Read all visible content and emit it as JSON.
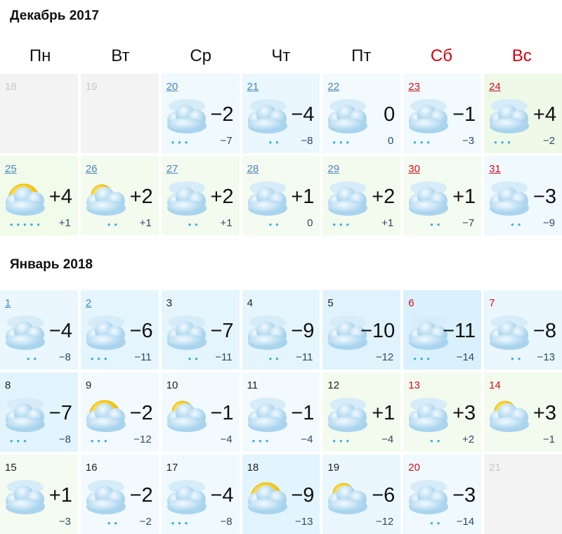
{
  "months": [
    {
      "title": "Декабрь 2017",
      "days": [
        {
          "d": "18",
          "state": "off",
          "bg": "#f3f3f3"
        },
        {
          "d": "19",
          "state": "off",
          "bg": "#f3f3f3"
        },
        {
          "d": "20",
          "state": "link",
          "bg": "#eff9fe",
          "icon": "cloud",
          "precip": 3,
          "hi": "−2",
          "lo": "−7"
        },
        {
          "d": "21",
          "state": "link",
          "bg": "#eaf7fe",
          "icon": "cloud",
          "precip": 2,
          "hi": "−4",
          "lo": "−8"
        },
        {
          "d": "22",
          "state": "link",
          "bg": "#f2fafe",
          "icon": "cloud",
          "precip": 3,
          "hi": "0",
          "lo": "0"
        },
        {
          "d": "23",
          "state": "link-we",
          "bg": "#f2fafe",
          "icon": "cloud",
          "precip": 3,
          "hi": "−1",
          "lo": "−3"
        },
        {
          "d": "24",
          "state": "link-we",
          "bg": "#eff9e8",
          "icon": "cloud",
          "precip": 3,
          "hi": "+4",
          "lo": "−2"
        },
        {
          "d": "25",
          "state": "link",
          "bg": "#f1fbea",
          "icon": "sun-cloud",
          "precip": 5,
          "hi": "+4",
          "lo": "+1"
        },
        {
          "d": "26",
          "state": "link",
          "bg": "#f3fbee",
          "icon": "partial-sun-cloud",
          "precip": 2,
          "hi": "+2",
          "lo": "+1"
        },
        {
          "d": "27",
          "state": "link",
          "bg": "#f3fbee",
          "icon": "cloud",
          "precip": 2,
          "hi": "+2",
          "lo": "+1"
        },
        {
          "d": "28",
          "state": "link",
          "bg": "#f4fbf0",
          "icon": "cloud",
          "precip": 2,
          "hi": "+1",
          "lo": "0"
        },
        {
          "d": "29",
          "state": "link",
          "bg": "#f3fbee",
          "icon": "cloud",
          "precip": 3,
          "hi": "+2",
          "lo": "+1"
        },
        {
          "d": "30",
          "state": "link-we",
          "bg": "#f4fbf0",
          "icon": "cloud",
          "precip": 2,
          "hi": "+1",
          "lo": "−7"
        },
        {
          "d": "31",
          "state": "link-we",
          "bg": "#f0f9fe",
          "icon": "cloud",
          "precip": 2,
          "hi": "−3",
          "lo": "−9"
        }
      ]
    },
    {
      "title": "Январь 2018",
      "days": [
        {
          "d": "1",
          "state": "link",
          "bg": "#eaf7fe",
          "icon": "cloud",
          "precip": 2,
          "hi": "−4",
          "lo": "−8"
        },
        {
          "d": "2",
          "state": "link",
          "bg": "#e5f5fd",
          "icon": "cloud",
          "precip": 3,
          "hi": "−6",
          "lo": "−11"
        },
        {
          "d": "3",
          "state": "plain",
          "bg": "#e5f5fd",
          "icon": "cloud",
          "precip": 2,
          "hi": "−7",
          "lo": "−11"
        },
        {
          "d": "4",
          "state": "plain",
          "bg": "#e5f5fd",
          "icon": "cloud",
          "precip": 2,
          "hi": "−9",
          "lo": "−11"
        },
        {
          "d": "5",
          "state": "plain",
          "bg": "#e0f3fd",
          "icon": "cloud",
          "precip": 0,
          "hi": "−10",
          "lo": "−12"
        },
        {
          "d": "6",
          "state": "we",
          "bg": "#daf0fc",
          "icon": "cloud",
          "precip": 3,
          "hi": "−11",
          "lo": "−14"
        },
        {
          "d": "7",
          "state": "we",
          "bg": "#eaf7fe",
          "icon": "cloud",
          "precip": 2,
          "hi": "−8",
          "lo": "−13"
        },
        {
          "d": "8",
          "state": "plain",
          "bg": "#e2f4fd",
          "icon": "cloud",
          "precip": 3,
          "hi": "−7",
          "lo": "−8"
        },
        {
          "d": "9",
          "state": "plain",
          "bg": "#f2fafe",
          "icon": "sun-cloud",
          "precip": 3,
          "hi": "−2",
          "lo": "−12"
        },
        {
          "d": "10",
          "state": "plain",
          "bg": "#f2fafe",
          "icon": "partial-sun-cloud",
          "precip": 0,
          "hi": "−1",
          "lo": "−4"
        },
        {
          "d": "11",
          "state": "plain",
          "bg": "#f2fafe",
          "icon": "cloud",
          "precip": 3,
          "hi": "−1",
          "lo": "−4"
        },
        {
          "d": "12",
          "state": "plain",
          "bg": "#f3fbee",
          "icon": "cloud",
          "precip": 3,
          "hi": "+1",
          "lo": "−4"
        },
        {
          "d": "13",
          "state": "we",
          "bg": "#f3fbee",
          "icon": "cloud",
          "precip": 2,
          "hi": "+3",
          "lo": "+2"
        },
        {
          "d": "14",
          "state": "we",
          "bg": "#f3fbee",
          "icon": "partial-sun-cloud",
          "precip": 0,
          "hi": "+3",
          "lo": "−1"
        },
        {
          "d": "15",
          "state": "plain",
          "bg": "#f4fbf0",
          "icon": "cloud",
          "precip": 0,
          "hi": "+1",
          "lo": "−3"
        },
        {
          "d": "16",
          "state": "plain",
          "bg": "#f2fafe",
          "icon": "cloud",
          "precip": 2,
          "hi": "−2",
          "lo": "−2"
        },
        {
          "d": "17",
          "state": "plain",
          "bg": "#eff9fe",
          "icon": "cloud",
          "precip": 3,
          "hi": "−4",
          "lo": "−8"
        },
        {
          "d": "18",
          "state": "plain",
          "bg": "#e2f4fd",
          "icon": "sun-cloud",
          "precip": 0,
          "hi": "−9",
          "lo": "−13"
        },
        {
          "d": "19",
          "state": "plain",
          "bg": "#eaf7fe",
          "icon": "partial-sun-cloud",
          "precip": 0,
          "hi": "−6",
          "lo": "−12"
        },
        {
          "d": "20",
          "state": "we",
          "bg": "#eff9fe",
          "icon": "cloud",
          "precip": 2,
          "hi": "−3",
          "lo": "−14"
        },
        {
          "d": "21",
          "state": "off",
          "bg": "#f3f3f3"
        }
      ]
    }
  ],
  "weekdays": [
    "Пн",
    "Вт",
    "Ср",
    "Чт",
    "Пт",
    "Сб",
    "Вс"
  ],
  "colors": {
    "weekend": "#d8000c",
    "link": "#4a86c0",
    "sun": "#f5c400",
    "cloud": "#bfe0f3",
    "precip": "#3ab0e8"
  }
}
